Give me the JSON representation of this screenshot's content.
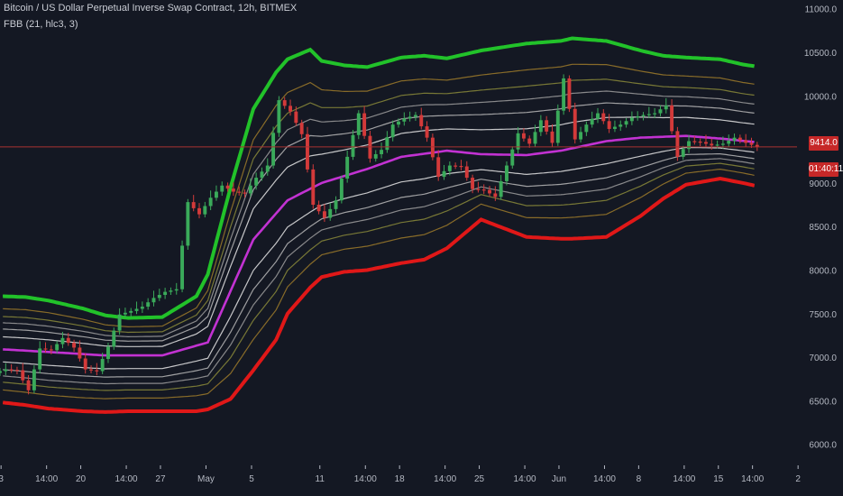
{
  "legend": {
    "symbol": "Bitcoin / US Dollar Perpetual Inverse Swap Contract, 12h, BITMEX",
    "indicator": "FBB (21, hlc3, 3)"
  },
  "price_tag": {
    "value": "9414.0",
    "color": "#c62828"
  },
  "timer_tag": {
    "value": "01:40:11",
    "color": "#c62828"
  },
  "colors": {
    "background": "#141823",
    "upper_band": "#22c22a",
    "lower_band": "#e01818",
    "basis": "#c232d2",
    "candle_up": "#3aaa5a",
    "candle_down": "#d33a3a",
    "price_line": "#a83232",
    "axis_text": "#b4b8c2"
  },
  "chart_data": {
    "type": "candlestick",
    "title": "Bitcoin / US Dollar Perpetual Inverse Swap Contract, 12h, BITMEX",
    "indicator": "FBB (21, hlc3, 3)",
    "ylim": [
      5800,
      11100
    ],
    "grid": false,
    "y_ticks": [
      "11000.0",
      "10500.0",
      "10000.0",
      "9500.0",
      "9000.0",
      "8500.0",
      "8000.0",
      "7500.0",
      "7000.0",
      "6500.0",
      "6000.0"
    ],
    "y_tick_values": [
      11000,
      10500,
      10000,
      9500,
      9000,
      8500,
      8000,
      7500,
      7000,
      6500,
      6000
    ],
    "x_ticks": [
      "3",
      "14:00",
      "20",
      "14:00",
      "27",
      "May",
      "5",
      "11",
      "14:00",
      "18",
      "14:00",
      "25",
      "14:00",
      "Jun",
      "14:00",
      "8",
      "14:00",
      "15",
      "14:00",
      "2"
    ],
    "x_tick_dates": [
      "2020-04-13",
      "2020-04-17",
      "2020-04-20",
      "2020-04-24",
      "2020-04-27",
      "2020-05-01",
      "2020-05-05",
      "2020-05-11",
      "2020-05-15",
      "2020-05-18",
      "2020-05-22",
      "2020-05-25",
      "2020-05-29",
      "2020-06-01",
      "2020-06-05",
      "2020-06-08",
      "2020-06-12",
      "2020-06-15",
      "2020-06-18",
      "2020-06-22"
    ],
    "last_price": 9414.0,
    "countdown": "01:40:11",
    "upper_band": {
      "dates": [
        "2020-04-13",
        "2020-04-15",
        "2020-04-17",
        "2020-04-20",
        "2020-04-22",
        "2020-04-24",
        "2020-04-27",
        "2020-04-28",
        "2020-04-30",
        "2020-05-01",
        "2020-05-03",
        "2020-05-05",
        "2020-05-07",
        "2020-05-08",
        "2020-05-10",
        "2020-05-11",
        "2020-05-13",
        "2020-05-15",
        "2020-05-18",
        "2020-05-20",
        "2020-05-22",
        "2020-05-25",
        "2020-05-27",
        "2020-05-29",
        "2020-06-01",
        "2020-06-02",
        "2020-06-05",
        "2020-06-08",
        "2020-06-10",
        "2020-06-12",
        "2020-06-15",
        "2020-06-17",
        "2020-06-18"
      ],
      "values": [
        7700,
        7690,
        7650,
        7560,
        7480,
        7450,
        7460,
        7540,
        7700,
        7950,
        8950,
        9850,
        10270,
        10420,
        10530,
        10400,
        10350,
        10330,
        10440,
        10460,
        10430,
        10520,
        10560,
        10600,
        10630,
        10660,
        10630,
        10520,
        10460,
        10440,
        10420,
        10360,
        10340
      ]
    },
    "lower_band": {
      "dates": [
        "2020-04-13",
        "2020-04-15",
        "2020-04-17",
        "2020-04-20",
        "2020-04-22",
        "2020-04-24",
        "2020-04-27",
        "2020-04-28",
        "2020-04-30",
        "2020-05-01",
        "2020-05-03",
        "2020-05-05",
        "2020-05-07",
        "2020-05-08",
        "2020-05-10",
        "2020-05-11",
        "2020-05-13",
        "2020-05-15",
        "2020-05-18",
        "2020-05-20",
        "2020-05-22",
        "2020-05-25",
        "2020-05-27",
        "2020-05-29",
        "2020-06-01",
        "2020-06-02",
        "2020-06-05",
        "2020-06-08",
        "2020-06-10",
        "2020-06-12",
        "2020-06-15",
        "2020-06-17",
        "2020-06-18"
      ],
      "values": [
        6480,
        6450,
        6410,
        6380,
        6370,
        6380,
        6380,
        6380,
        6380,
        6400,
        6520,
        6850,
        7200,
        7500,
        7800,
        7920,
        7980,
        8000,
        8080,
        8120,
        8250,
        8580,
        8480,
        8380,
        8360,
        8360,
        8380,
        8620,
        8820,
        8980,
        9050,
        9000,
        8970
      ]
    },
    "basis": {
      "dates": [
        "2020-04-13",
        "2020-04-17",
        "2020-04-22",
        "2020-04-27",
        "2020-05-01",
        "2020-05-05",
        "2020-05-08",
        "2020-05-11",
        "2020-05-15",
        "2020-05-18",
        "2020-05-22",
        "2020-05-25",
        "2020-05-29",
        "2020-06-01",
        "2020-06-05",
        "2020-06-08",
        "2020-06-12",
        "2020-06-15",
        "2020-06-18"
      ],
      "values": [
        7090,
        7060,
        7020,
        7020,
        7170,
        8350,
        8800,
        9000,
        9160,
        9300,
        9370,
        9330,
        9320,
        9370,
        9480,
        9520,
        9540,
        9510,
        9470
      ]
    },
    "band_multipliers": [
      0.236,
      0.382,
      0.5,
      0.618,
      0.764,
      1.0
    ],
    "band_color_sequence": [
      "#e6e6e6",
      "#b8b8b8",
      "#9e9e9e",
      "#8a8a3a",
      "#9c7a2a",
      "#c08a2a"
    ],
    "candles": {
      "dates": [
        "2020-04-13",
        "2020-04-14",
        "2020-04-15",
        "2020-04-16",
        "2020-04-17",
        "2020-04-18",
        "2020-04-19",
        "2020-04-20",
        "2020-04-21",
        "2020-04-22",
        "2020-04-23",
        "2020-04-24",
        "2020-04-25",
        "2020-04-26",
        "2020-04-27",
        "2020-04-28",
        "2020-04-29",
        "2020-04-30",
        "2020-05-01",
        "2020-05-02",
        "2020-05-03",
        "2020-05-04",
        "2020-05-05",
        "2020-05-06",
        "2020-05-07",
        "2020-05-08",
        "2020-05-09",
        "2020-05-10",
        "2020-05-11",
        "2020-05-12",
        "2020-05-13",
        "2020-05-14",
        "2020-05-15",
        "2020-05-16",
        "2020-05-17",
        "2020-05-18",
        "2020-05-19",
        "2020-05-20",
        "2020-05-21",
        "2020-05-22",
        "2020-05-23",
        "2020-05-24",
        "2020-05-25",
        "2020-05-26",
        "2020-05-27",
        "2020-05-28",
        "2020-05-29",
        "2020-05-30",
        "2020-05-31",
        "2020-06-01",
        "2020-06-02",
        "2020-06-03",
        "2020-06-04",
        "2020-06-05",
        "2020-06-06",
        "2020-06-07",
        "2020-06-08",
        "2020-06-09",
        "2020-06-10",
        "2020-06-11",
        "2020-06-12",
        "2020-06-13",
        "2020-06-14",
        "2020-06-15",
        "2020-06-16",
        "2020-06-17",
        "2020-06-18"
      ],
      "close": [
        6860,
        6850,
        6620,
        7100,
        7080,
        7220,
        7110,
        6860,
        6840,
        7120,
        7490,
        7530,
        7580,
        7680,
        7750,
        7780,
        8780,
        8640,
        8830,
        8970,
        8900,
        8880,
        9060,
        9200,
        9950,
        9820,
        9560,
        8750,
        8600,
        8800,
        9300,
        9800,
        9280,
        9380,
        9670,
        9740,
        9780,
        9520,
        9070,
        9200,
        9190,
        8930,
        8920,
        8840,
        9200,
        9570,
        9450,
        9720,
        9460,
        10200,
        9500,
        9670,
        9800,
        9620,
        9670,
        9750,
        9780,
        9800,
        9890,
        9300,
        9480,
        9470,
        9430,
        9450,
        9520,
        9460,
        9414
      ]
    }
  }
}
